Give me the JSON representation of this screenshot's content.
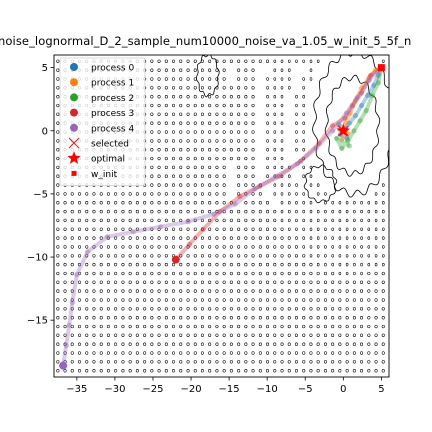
{
  "chart_data": {
    "type": "scatter",
    "title": "noise_lognormal_D_2_sample_num10000_noise_va_1.05_w_init_5_5f_n",
    "xlim": [
      -38.0,
      6.0
    ],
    "ylim": [
      -19.5,
      6.0
    ],
    "x_ticks": [
      -35,
      -30,
      -25,
      -20,
      -15,
      -10,
      -5,
      0,
      5
    ],
    "y_ticks": [
      5,
      0,
      -5,
      -10,
      -15
    ],
    "x_tick_labels": [
      "−35",
      "−30",
      "−25",
      "−20",
      "−15",
      "−10",
      "−5",
      "0",
      "5"
    ],
    "y_tick_labels": [
      "5",
      "0",
      "−5",
      "−10",
      "−15"
    ],
    "grid": false,
    "legend_position": "upper-left",
    "legend": [
      {
        "label": "process 0",
        "marker": "circle",
        "color": "#1f77b4"
      },
      {
        "label": "process 1",
        "marker": "circle",
        "color": "#ff7f0e"
      },
      {
        "label": "process 2",
        "marker": "circle",
        "color": "#2ca02c"
      },
      {
        "label": "process 3",
        "marker": "circle",
        "color": "#d62728"
      },
      {
        "label": "process 4",
        "marker": "circle",
        "color": "#9467bd"
      },
      {
        "label": "selected",
        "marker": "x",
        "color": "#d62728"
      },
      {
        "label": "optimal",
        "marker": "star",
        "color": "#ff0000"
      },
      {
        "label": "w_init",
        "marker": "square",
        "color": "#ff0000"
      }
    ],
    "special_points": {
      "optimal": [
        0.0,
        0.0
      ],
      "w_init": [
        5.0,
        5.0
      ],
      "selected": [
        0.0,
        0.0
      ],
      "process4_end": [
        -36.8,
        -18.6
      ],
      "process3_end": [
        -22.0,
        -10.2
      ]
    },
    "series": [
      {
        "name": "process 0",
        "color": "#1f77b4",
        "points": [
          [
            5.0,
            5.0
          ],
          [
            4.6,
            4.4
          ],
          [
            4.0,
            3.6
          ],
          [
            3.2,
            2.8
          ],
          [
            2.4,
            2.0
          ],
          [
            1.6,
            1.2
          ],
          [
            0.8,
            0.6
          ],
          [
            0.3,
            0.2
          ],
          [
            -0.4,
            -0.3
          ],
          [
            0.5,
            -0.6
          ],
          [
            -0.6,
            0.5
          ]
        ]
      },
      {
        "name": "process 1",
        "color": "#ff7f0e",
        "points": [
          [
            5.0,
            5.0
          ],
          [
            4.2,
            4.8
          ],
          [
            3.4,
            4.2
          ],
          [
            2.4,
            3.4
          ],
          [
            1.6,
            2.4
          ],
          [
            0.9,
            1.4
          ],
          [
            0.3,
            0.6
          ],
          [
            -0.5,
            0.1
          ],
          [
            0.6,
            -0.2
          ],
          [
            -0.2,
            -0.7
          ]
        ]
      },
      {
        "name": "process 2",
        "color": "#2ca02c",
        "points": [
          [
            5.0,
            5.0
          ],
          [
            4.6,
            3.8
          ],
          [
            3.8,
            2.8
          ],
          [
            3.0,
            1.6
          ],
          [
            2.2,
            0.8
          ],
          [
            1.4,
            0.0
          ],
          [
            0.6,
            -0.8
          ],
          [
            -0.2,
            -1.4
          ],
          [
            -0.9,
            -0.6
          ],
          [
            0.8,
            -1.2
          ]
        ]
      },
      {
        "name": "process 3",
        "color": "#d62728",
        "points": [
          [
            5.0,
            5.0
          ],
          [
            3.6,
            4.4
          ],
          [
            2.4,
            3.0
          ],
          [
            1.2,
            2.0
          ],
          [
            0.2,
            1.0
          ],
          [
            -1.4,
            0.4
          ],
          [
            -3.2,
            -1.0
          ],
          [
            -5.6,
            -2.4
          ],
          [
            -8.4,
            -3.6
          ],
          [
            -11.0,
            -4.4
          ],
          [
            -13.6,
            -5.2
          ],
          [
            -16.2,
            -6.4
          ],
          [
            -18.4,
            -7.8
          ],
          [
            -20.2,
            -9.0
          ],
          [
            -22.0,
            -10.2
          ]
        ]
      },
      {
        "name": "process 4",
        "color": "#9467bd",
        "points": [
          [
            5.0,
            5.0
          ],
          [
            3.4,
            4.0
          ],
          [
            1.8,
            2.6
          ],
          [
            0.4,
            1.4
          ],
          [
            -1.4,
            0.0
          ],
          [
            -3.6,
            -1.4
          ],
          [
            -6.0,
            -2.6
          ],
          [
            -8.8,
            -3.6
          ],
          [
            -11.6,
            -4.6
          ],
          [
            -14.2,
            -5.8
          ],
          [
            -17.0,
            -6.6
          ],
          [
            -20.4,
            -7.2
          ],
          [
            -24.0,
            -7.6
          ],
          [
            -27.6,
            -8.0
          ],
          [
            -31.0,
            -8.4
          ],
          [
            -33.6,
            -9.6
          ],
          [
            -35.0,
            -11.4
          ],
          [
            -35.6,
            -13.6
          ],
          [
            -36.0,
            -15.4
          ],
          [
            -36.4,
            -17.0
          ],
          [
            -36.8,
            -18.6
          ]
        ]
      }
    ]
  }
}
